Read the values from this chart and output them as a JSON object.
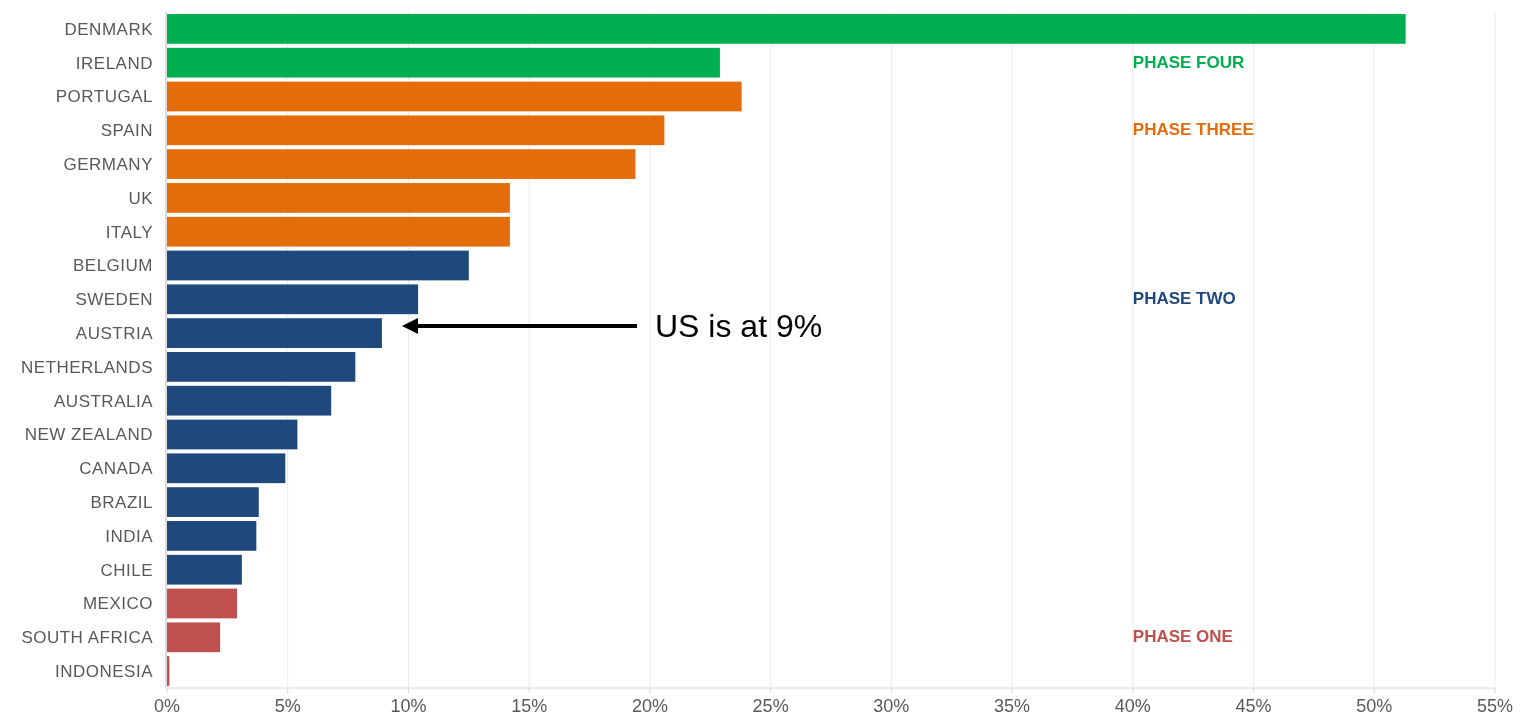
{
  "chart_data": {
    "type": "bar",
    "orientation": "horizontal",
    "categories": [
      "DENMARK",
      "IRELAND",
      "PORTUGAL",
      "SPAIN",
      "GERMANY",
      "UK",
      "ITALY",
      "BELGIUM",
      "SWEDEN",
      "AUSTRIA",
      "NETHERLANDS",
      "AUSTRALIA",
      "NEW ZEALAND",
      "CANADA",
      "BRAZIL",
      "INDIA",
      "CHILE",
      "MEXICO",
      "SOUTH AFRICA",
      "INDONESIA"
    ],
    "series": [
      {
        "name": "PHASE FOUR",
        "color": "#00b050",
        "values": [
          51.3,
          22.9,
          null,
          null,
          null,
          null,
          null,
          null,
          null,
          null,
          null,
          null,
          null,
          null,
          null,
          null,
          null,
          null,
          null,
          null
        ]
      },
      {
        "name": "PHASE THREE",
        "color": "#e46c0a",
        "values": [
          null,
          null,
          23.8,
          20.6,
          19.4,
          14.2,
          14.2,
          null,
          null,
          null,
          null,
          null,
          null,
          null,
          null,
          null,
          null,
          null,
          null,
          null
        ]
      },
      {
        "name": "PHASE TWO",
        "color": "#1f497d",
        "values": [
          null,
          null,
          null,
          null,
          null,
          null,
          null,
          12.5,
          10.4,
          8.9,
          7.8,
          6.8,
          5.4,
          4.9,
          3.8,
          3.7,
          3.1,
          null,
          null,
          null
        ]
      },
      {
        "name": "PHASE ONE",
        "color": "#c0504d",
        "values": [
          null,
          null,
          null,
          null,
          null,
          null,
          null,
          null,
          null,
          null,
          null,
          null,
          null,
          null,
          null,
          null,
          null,
          2.9,
          2.2,
          0.1
        ]
      }
    ],
    "xlim": [
      0,
      55
    ],
    "xticks": [
      {
        "value": 0,
        "label": "0%"
      },
      {
        "value": 5,
        "label": "5%"
      },
      {
        "value": 10,
        "label": "10%"
      },
      {
        "value": 15,
        "label": "15%"
      },
      {
        "value": 20,
        "label": "20%"
      },
      {
        "value": 25,
        "label": "25%"
      },
      {
        "value": 30,
        "label": "30%"
      },
      {
        "value": 35,
        "label": "35%"
      },
      {
        "value": 40,
        "label": "40%"
      },
      {
        "value": 45,
        "label": "45%"
      },
      {
        "value": 50,
        "label": "50%"
      },
      {
        "value": 55,
        "label": "55%"
      }
    ],
    "grid": "x",
    "legend": "right",
    "annotations": [
      "US is at 9%"
    ]
  }
}
